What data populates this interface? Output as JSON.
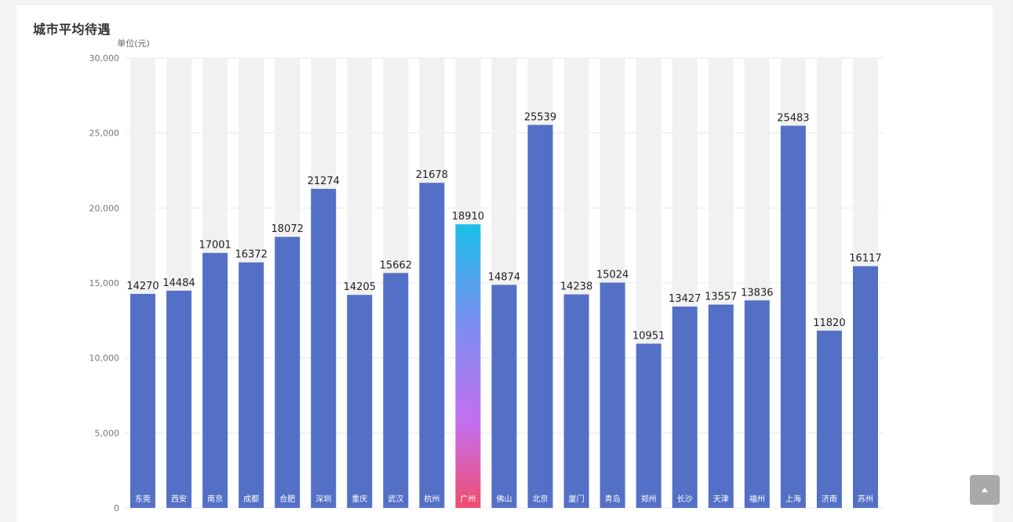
{
  "page": {
    "title": "城市平均待遇"
  },
  "chart_data": {
    "type": "bar",
    "title": "城市平均待遇",
    "ylabel": "单位(元)",
    "ylim": [
      0,
      30000
    ],
    "yticks": [
      "0",
      "5,000",
      "10,000",
      "15,000",
      "20,000",
      "25,000",
      "30,000"
    ],
    "ytick_values": [
      0,
      5000,
      10000,
      15000,
      20000,
      25000,
      30000
    ],
    "categories": [
      "东莞",
      "西安",
      "南京",
      "成都",
      "合肥",
      "深圳",
      "重庆",
      "武汉",
      "杭州",
      "广州",
      "佛山",
      "北京",
      "厦门",
      "青岛",
      "郑州",
      "长沙",
      "天津",
      "福州",
      "上海",
      "济南",
      "苏州"
    ],
    "values": [
      14270,
      14484,
      17001,
      16372,
      18072,
      21274,
      14205,
      15662,
      21678,
      18910,
      14874,
      25539,
      14238,
      15024,
      10951,
      13427,
      13557,
      13836,
      25483,
      11820,
      16117
    ],
    "highlight_category": "广州",
    "bar_color": "#5470c6",
    "background_bar_color": "#f1f1f1",
    "highlight_gradient": [
      "#1bbfe9",
      "#7b8ff0",
      "#c46ff0",
      "#f04d6e"
    ]
  },
  "back_to_top": {
    "icon": "caret-up-icon"
  }
}
